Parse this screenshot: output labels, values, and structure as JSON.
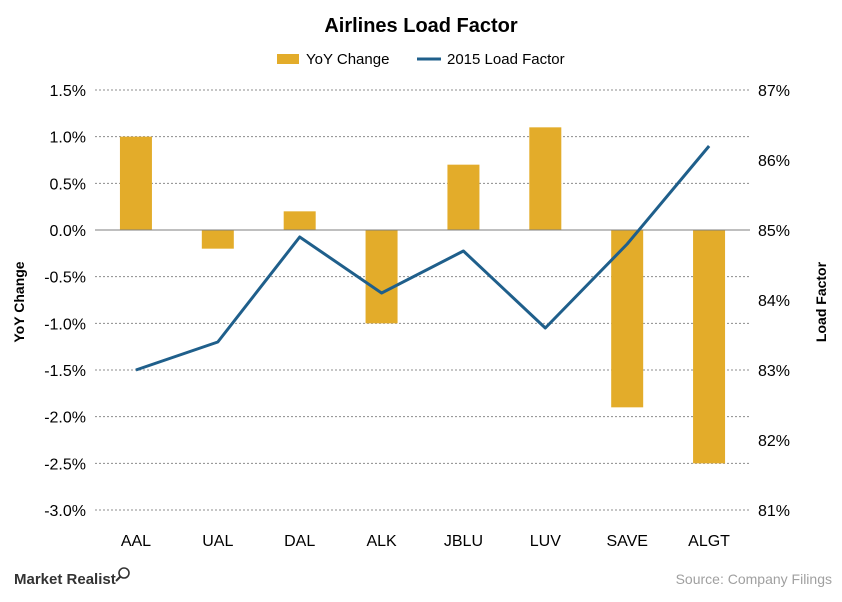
{
  "chart_data": {
    "type": "bar",
    "title": "Airlines Load Factor",
    "categories": [
      "AAL",
      "UAL",
      "DAL",
      "ALK",
      "JBLU",
      "LUV",
      "SAVE",
      "ALGT"
    ],
    "series": [
      {
        "name": "YoY Change",
        "type": "bar",
        "axis": "left",
        "color": "#e3ac2a",
        "values": [
          1.0,
          -0.2,
          0.2,
          -1.0,
          0.7,
          1.1,
          -1.9,
          -2.5
        ]
      },
      {
        "name": "2015 Load Factor",
        "type": "line",
        "axis": "right",
        "color": "#1f5f8b",
        "values": [
          83.0,
          83.4,
          84.9,
          84.1,
          84.7,
          83.6,
          84.8,
          86.2
        ]
      }
    ],
    "ylabel": "YoY Change",
    "y2label": "Load Factor",
    "ylim": [
      -3.0,
      1.5
    ],
    "y2lim": [
      81,
      87
    ],
    "yticks": [
      "1.5%",
      "1.0%",
      "0.5%",
      "0.0%",
      "-0.5%",
      "-1.0%",
      "-1.5%",
      "-2.0%",
      "-2.5%",
      "-3.0%"
    ],
    "y2ticks": [
      "87%",
      "86%",
      "85%",
      "84%",
      "83%",
      "82%",
      "81%"
    ],
    "grid": true,
    "legend": "top"
  },
  "branding": {
    "name": "Market Realist",
    "icon": "magnifier-icon"
  },
  "source": "Source: Company Filings"
}
